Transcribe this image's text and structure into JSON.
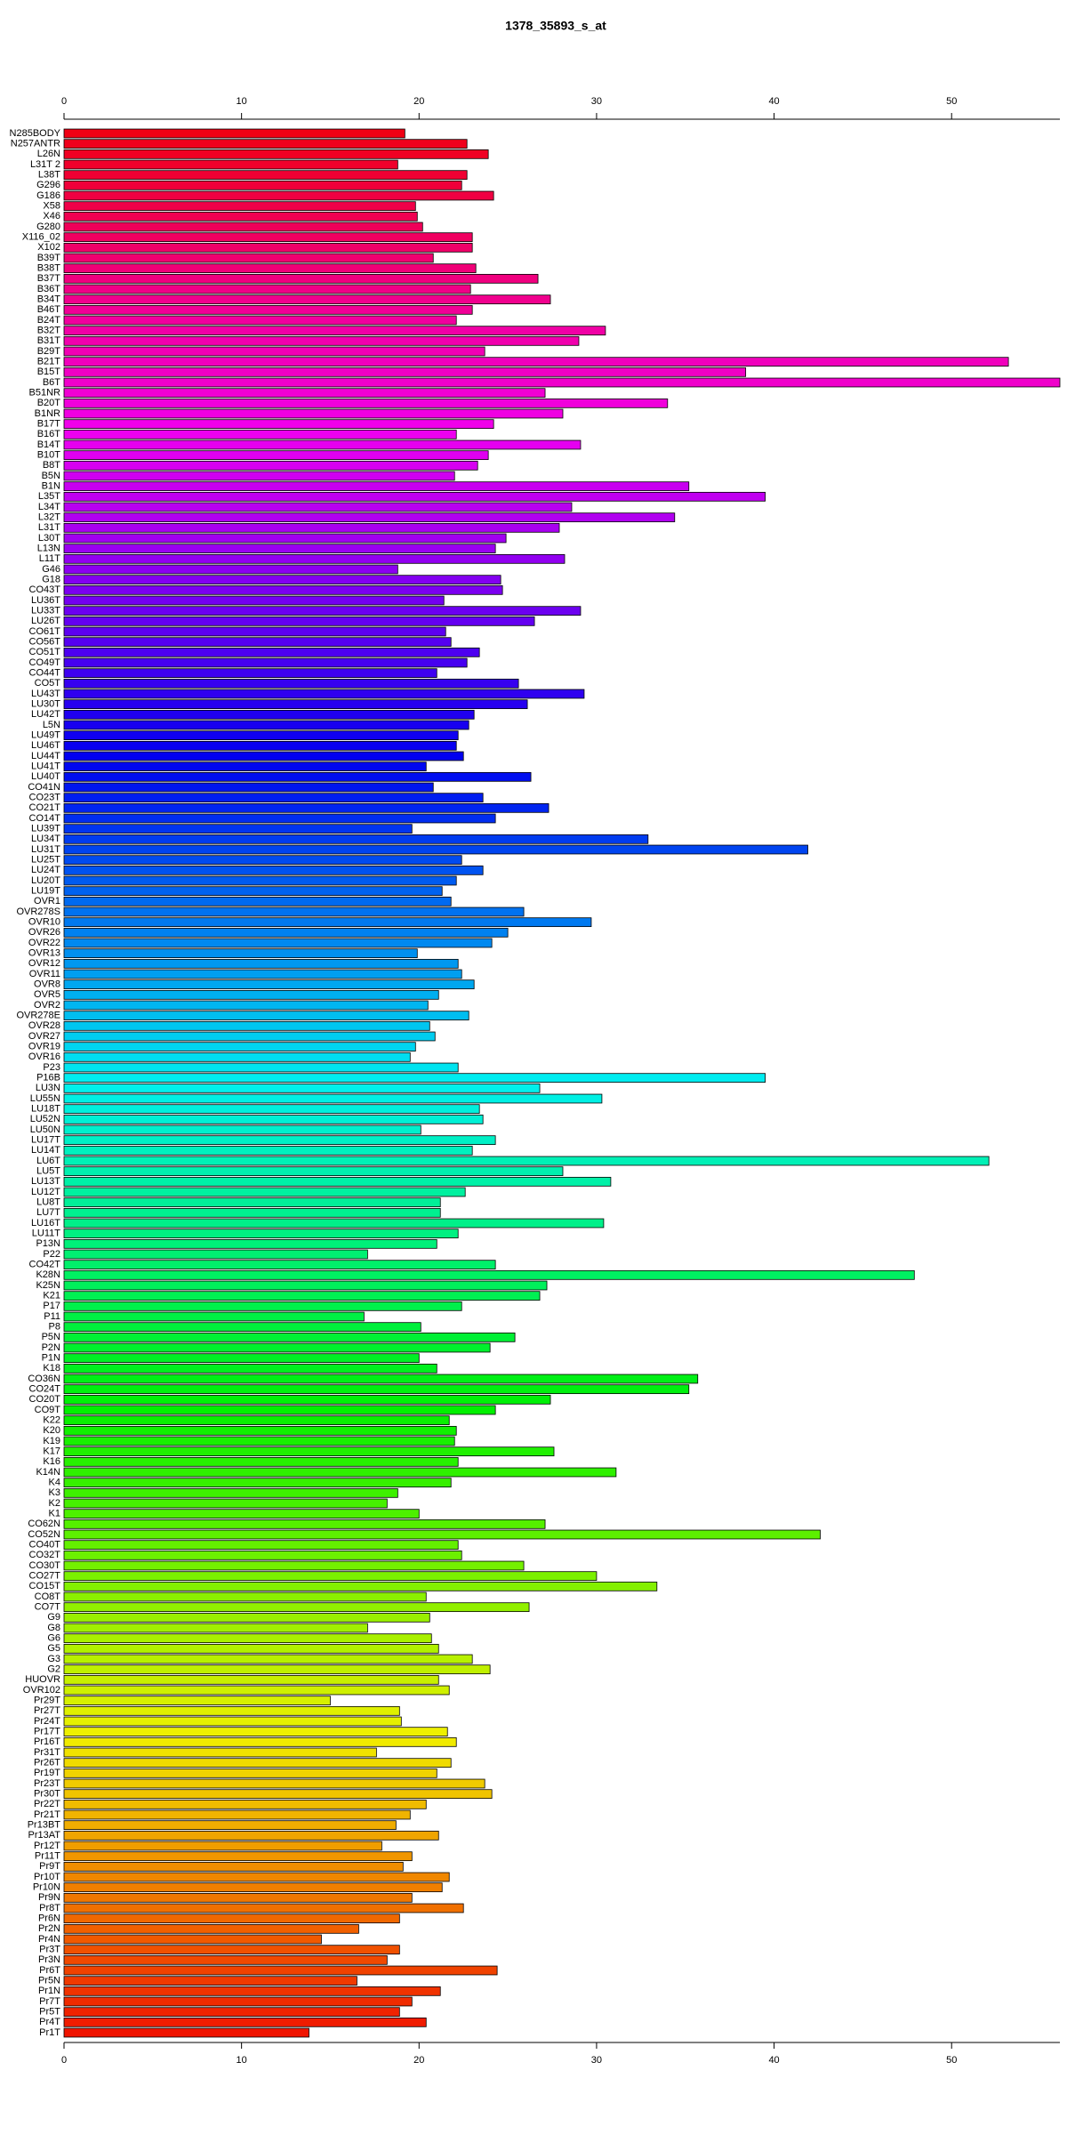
{
  "chart_data": {
    "type": "barh",
    "title": "1378_35893_s_at",
    "categories": [
      "N285BODY",
      "N257ANTR",
      "L26N",
      "L31T 2",
      "L38T",
      "G296",
      "G186",
      "X58",
      "X46",
      "G280",
      "X116_02",
      "X102",
      "B39T",
      "B38T",
      "B37T",
      "B36T",
      "B34T",
      "B46T",
      "B24T",
      "B32T",
      "B31T",
      "B29T",
      "B21T",
      "B15T",
      "B6T",
      "B51NR",
      "B20T",
      "B1NR",
      "B17T",
      "B16T",
      "B14T",
      "B10T",
      "B8T",
      "B5N",
      "B1N",
      "L35T",
      "L34T",
      "L32T",
      "L31T",
      "L30T",
      "L13N",
      "L11T",
      "G46",
      "G18",
      "CO43T",
      "LU36T",
      "LU33T",
      "LU26T",
      "CO61T",
      "CO56T",
      "CO51T",
      "CO49T",
      "CO44T",
      "CO5T",
      "LU43T",
      "LU30T",
      "LU42T",
      "L5N",
      "LU49T",
      "LU46T",
      "LU44T",
      "LU41T",
      "LU40T",
      "CO41N",
      "CO23T",
      "CO21T",
      "CO14T",
      "LU39T",
      "LU34T",
      "LU31T",
      "LU25T",
      "LU24T",
      "LU20T",
      "LU19T",
      "OVR1",
      "OVR278S",
      "OVR10",
      "OVR26",
      "OVR22",
      "OVR13",
      "OVR12",
      "OVR11",
      "OVR8",
      "OVR5",
      "OVR2",
      "OVR278E",
      "OVR28",
      "OVR27",
      "OVR19",
      "OVR16",
      "P23",
      "P16B",
      "LU3N",
      "LU55N",
      "LU18T",
      "LU52N",
      "LU50N",
      "LU17T",
      "LU14T",
      "LU6T",
      "LU5T",
      "LU13T",
      "LU12T",
      "LU8T",
      "LU7T",
      "LU16T",
      "LU11T",
      "P13N",
      "P22",
      "CO42T",
      "K28N",
      "K25N",
      "K21",
      "P17",
      "P11",
      "P8",
      "P5N",
      "P2N",
      "P1N",
      "K18",
      "CO36N",
      "CO24T",
      "CO20T",
      "CO9T",
      "K22",
      "K20",
      "K19",
      "K17",
      "K16",
      "K14N",
      "K4",
      "K3",
      "K2",
      "K1",
      "CO62N",
      "CO52N",
      "CO40T",
      "CO32T",
      "CO30T",
      "CO27T",
      "CO15T",
      "CO8T",
      "CO7T",
      "G9",
      "G8",
      "G6",
      "G5",
      "G3",
      "G2",
      "HUOVR",
      "OVR102",
      "Pr29T",
      "Pr27T",
      "Pr24T",
      "Pr17T",
      "Pr16T",
      "Pr31T",
      "Pr26T",
      "Pr19T",
      "Pr23T",
      "Pr30T",
      "Pr22T",
      "Pr21T",
      "Pr13BT",
      "Pr13AT",
      "Pr12T",
      "Pr11T",
      "Pr9T",
      "Pr10T",
      "Pr10N",
      "Pr9N",
      "Pr8T",
      "Pr6N",
      "Pr2N",
      "Pr4N",
      "Pr3T",
      "Pr3N",
      "Pr6T",
      "Pr5N",
      "Pr1N",
      "Pr7T",
      "Pr5T",
      "Pr4T",
      "Pr1T"
    ],
    "values": [
      19.2,
      22.7,
      23.9,
      18.8,
      22.7,
      22.4,
      24.2,
      19.8,
      19.9,
      20.2,
      23.0,
      23.0,
      20.8,
      23.2,
      26.7,
      22.9,
      27.4,
      23.0,
      22.1,
      30.5,
      29.0,
      23.7,
      53.2,
      38.4,
      56.1,
      27.1,
      34.0,
      28.1,
      24.2,
      22.1,
      29.1,
      23.9,
      23.3,
      22.0,
      35.2,
      39.5,
      28.6,
      34.4,
      27.9,
      24.9,
      24.3,
      28.2,
      18.8,
      24.6,
      24.7,
      21.4,
      29.1,
      26.5,
      21.5,
      21.8,
      23.4,
      22.7,
      21.0,
      25.6,
      29.3,
      26.1,
      23.1,
      22.8,
      22.2,
      22.1,
      22.5,
      20.4,
      26.3,
      20.8,
      23.6,
      27.3,
      24.3,
      19.6,
      32.9,
      41.9,
      22.4,
      23.6,
      22.1,
      21.3,
      21.8,
      25.9,
      29.7,
      25.0,
      24.1,
      19.9,
      22.2,
      22.4,
      23.1,
      21.1,
      20.5,
      22.8,
      20.6,
      20.9,
      19.8,
      19.5,
      22.2,
      39.5,
      26.8,
      30.3,
      23.4,
      23.6,
      20.1,
      24.3,
      23.0,
      52.1,
      28.1,
      30.8,
      22.6,
      21.2,
      21.2,
      30.4,
      22.2,
      21.0,
      17.1,
      24.3,
      47.9,
      27.2,
      26.8,
      22.4,
      16.9,
      20.1,
      25.4,
      24.0,
      20.0,
      21.0,
      35.7,
      35.2,
      27.4,
      24.3,
      21.7,
      22.1,
      22.0,
      27.6,
      22.2,
      31.1,
      21.8,
      18.8,
      18.2,
      20.0,
      27.1,
      42.6,
      22.2,
      22.4,
      25.9,
      30.0,
      33.4,
      20.4,
      26.2,
      20.6,
      17.1,
      20.7,
      21.1,
      23.0,
      24.0,
      21.1,
      21.7,
      15.0,
      18.9,
      19.0,
      21.6,
      22.1,
      17.6,
      21.8,
      21.0,
      23.7,
      24.1,
      20.4,
      19.5,
      18.7,
      21.1,
      17.9,
      19.6,
      19.1,
      21.7,
      21.3,
      19.6,
      22.5,
      18.9,
      16.6,
      14.5,
      18.9,
      18.2,
      24.4,
      16.5,
      21.2,
      19.6,
      18.9,
      20.4,
      13.8
    ],
    "palette": "rainbow",
    "xlim": [
      0,
      56.1
    ],
    "xticks": [
      0,
      10,
      20,
      30,
      40,
      50
    ]
  }
}
